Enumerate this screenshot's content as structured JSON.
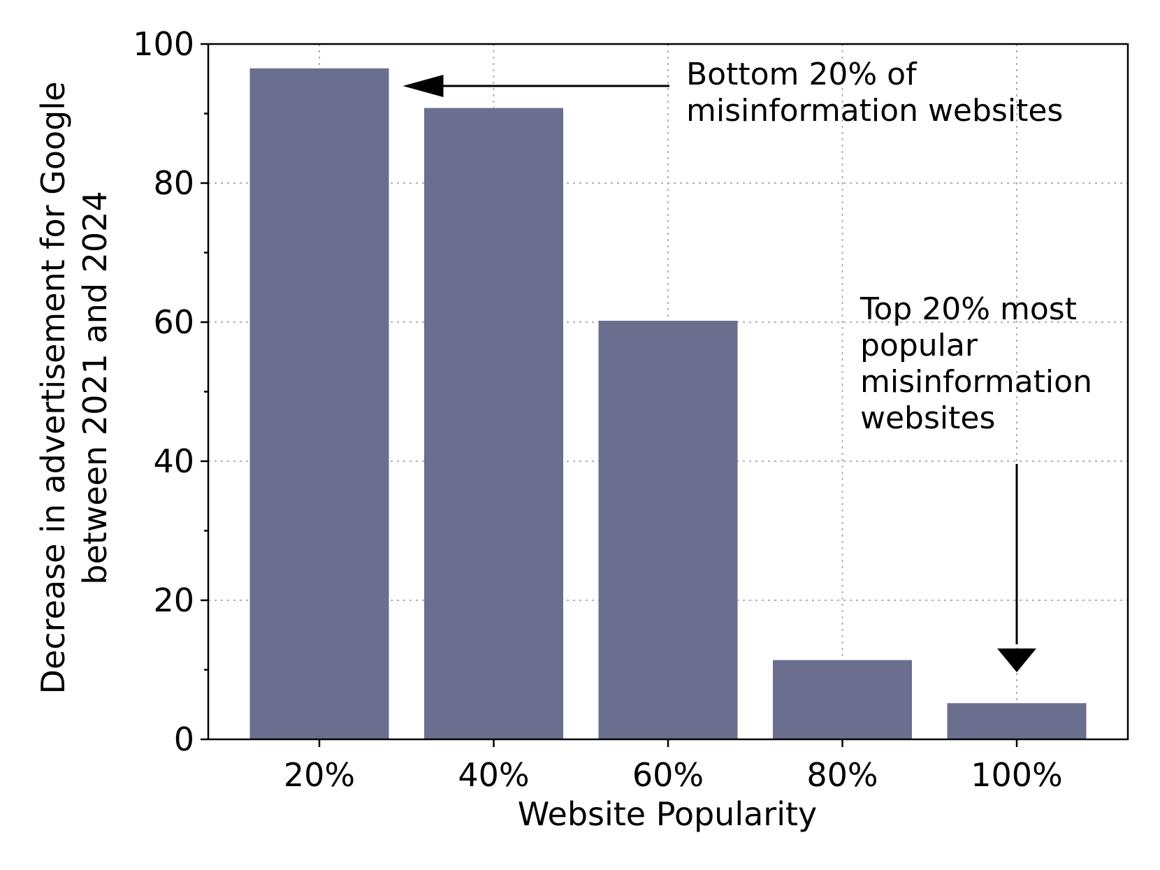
{
  "chart_data": {
    "type": "bar",
    "categories": [
      "20%",
      "40%",
      "60%",
      "80%",
      "100%"
    ],
    "values": [
      96.5,
      90.8,
      60.2,
      11.4,
      5.2
    ],
    "title": "",
    "xlabel": "Website Popularity",
    "ylabel_lines": [
      "Decrease in advertisement for Google",
      "between 2021 and 2024"
    ],
    "ylim": [
      0,
      100
    ],
    "yticks": [
      0,
      20,
      40,
      60,
      80,
      100
    ],
    "yticks_minor": [
      10,
      30,
      50,
      70,
      90
    ],
    "grid": true,
    "bar_color": "#6b6f8f",
    "annotations": [
      {
        "lines": [
          "Bottom 20% of",
          "misinformation websites"
        ],
        "arrow_direction": "left",
        "target_category": "20%"
      },
      {
        "lines": [
          "Top 20% most",
          "popular",
          "misinformation",
          "websites"
        ],
        "arrow_direction": "down",
        "target_category": "100%"
      }
    ]
  }
}
